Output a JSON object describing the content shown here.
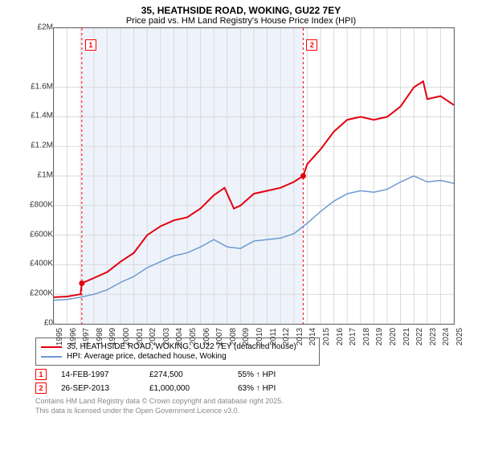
{
  "title_line1": "35, HEATHSIDE ROAD, WOKING, GU22 7EY",
  "title_line2": "Price paid vs. HM Land Registry's House Price Index (HPI)",
  "chart": {
    "type": "line",
    "x_range": [
      1995,
      2025
    ],
    "y_range_gbp": [
      0,
      2000000
    ],
    "y_ticks": [
      "£0",
      "£200K",
      "£400K",
      "£600K",
      "£800K",
      "£1M",
      "£1.2M",
      "£1.4M",
      "£1.6M",
      "£2M"
    ],
    "y_tick_values": [
      0,
      200000,
      400000,
      600000,
      800000,
      1000000,
      1200000,
      1400000,
      1600000,
      2000000
    ],
    "x_ticks": [
      1995,
      1996,
      1997,
      1998,
      1999,
      2000,
      2001,
      2002,
      2003,
      2004,
      2005,
      2006,
      2007,
      2008,
      2009,
      2010,
      2011,
      2012,
      2013,
      2014,
      2015,
      2016,
      2017,
      2018,
      2019,
      2020,
      2021,
      2022,
      2023,
      2024,
      2025
    ],
    "highlight_band": {
      "x_start": 1997.1,
      "x_end": 2013.7,
      "color": "#eef3fb"
    },
    "vlines": [
      {
        "x": 1997.1,
        "color": "#f00",
        "dash": "3,3"
      },
      {
        "x": 2013.7,
        "color": "#f00",
        "dash": "3,3"
      }
    ],
    "series_price_paid": {
      "name": "35, HEATHSIDE ROAD, WOKING, GU22 7EY (detached house)",
      "color": "#e3000f",
      "width": 2,
      "points": [
        [
          1995,
          180000
        ],
        [
          1996,
          185000
        ],
        [
          1997,
          200000
        ],
        [
          1997.1,
          274500
        ],
        [
          1998,
          310000
        ],
        [
          1999,
          350000
        ],
        [
          2000,
          420000
        ],
        [
          2001,
          480000
        ],
        [
          2002,
          600000
        ],
        [
          2003,
          660000
        ],
        [
          2004,
          700000
        ],
        [
          2005,
          720000
        ],
        [
          2006,
          780000
        ],
        [
          2007,
          870000
        ],
        [
          2007.8,
          920000
        ],
        [
          2008.5,
          780000
        ],
        [
          2009,
          800000
        ],
        [
          2010,
          880000
        ],
        [
          2011,
          900000
        ],
        [
          2012,
          920000
        ],
        [
          2013,
          960000
        ],
        [
          2013.7,
          1000000
        ],
        [
          2014,
          1080000
        ],
        [
          2015,
          1180000
        ],
        [
          2016,
          1300000
        ],
        [
          2017,
          1380000
        ],
        [
          2018,
          1400000
        ],
        [
          2019,
          1380000
        ],
        [
          2020,
          1400000
        ],
        [
          2021,
          1470000
        ],
        [
          2022,
          1600000
        ],
        [
          2022.7,
          1640000
        ],
        [
          2023,
          1520000
        ],
        [
          2024,
          1540000
        ],
        [
          2025,
          1480000
        ]
      ],
      "markers": [
        {
          "id": "1",
          "x": 1997.1,
          "y": 274500
        },
        {
          "id": "2",
          "x": 2013.7,
          "y": 1000000
        }
      ]
    },
    "series_hpi": {
      "name": "HPI: Average price, detached house, Woking",
      "color": "#6d99d2",
      "width": 1.5,
      "points": [
        [
          1995,
          160000
        ],
        [
          1996,
          165000
        ],
        [
          1997,
          180000
        ],
        [
          1998,
          200000
        ],
        [
          1999,
          230000
        ],
        [
          2000,
          280000
        ],
        [
          2001,
          320000
        ],
        [
          2002,
          380000
        ],
        [
          2003,
          420000
        ],
        [
          2004,
          460000
        ],
        [
          2005,
          480000
        ],
        [
          2006,
          520000
        ],
        [
          2007,
          570000
        ],
        [
          2008,
          520000
        ],
        [
          2009,
          510000
        ],
        [
          2010,
          560000
        ],
        [
          2011,
          570000
        ],
        [
          2012,
          580000
        ],
        [
          2013,
          610000
        ],
        [
          2014,
          680000
        ],
        [
          2015,
          760000
        ],
        [
          2016,
          830000
        ],
        [
          2017,
          880000
        ],
        [
          2018,
          900000
        ],
        [
          2019,
          890000
        ],
        [
          2020,
          910000
        ],
        [
          2021,
          960000
        ],
        [
          2022,
          1000000
        ],
        [
          2023,
          960000
        ],
        [
          2024,
          970000
        ],
        [
          2025,
          950000
        ]
      ]
    },
    "background_color": "#ffffff",
    "grid_color": "#d9d9d9"
  },
  "legend": {
    "items": [
      {
        "color": "#e3000f",
        "label": "35, HEATHSIDE ROAD, WOKING, GU22 7EY (detached house)"
      },
      {
        "color": "#6d99d2",
        "label": "HPI: Average price, detached house, Woking"
      }
    ]
  },
  "transactions": [
    {
      "id": "1",
      "date": "14-FEB-1997",
      "price": "£274,500",
      "delta": "55% ↑ HPI"
    },
    {
      "id": "2",
      "date": "26-SEP-2013",
      "price": "£1,000,000",
      "delta": "63% ↑ HPI"
    }
  ],
  "footer_line1": "Contains HM Land Registry data © Crown copyright and database right 2025.",
  "footer_line2": "This data is licensed under the Open Government Licence v3.0."
}
